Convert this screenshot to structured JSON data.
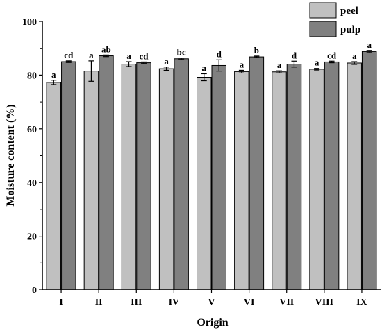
{
  "chart_data": {
    "type": "bar",
    "title": "",
    "xlabel": "Origin",
    "ylabel": "Moisture content (%)",
    "ylim": [
      0,
      100
    ],
    "yticks": [
      0,
      20,
      40,
      60,
      80,
      100
    ],
    "categories": [
      "I",
      "II",
      "III",
      "IV",
      "V",
      "VI",
      "VII",
      "VIII",
      "IX"
    ],
    "series": [
      {
        "name": "peel",
        "color": "#c0c0c0",
        "values": [
          77.3,
          81.5,
          84.1,
          82.4,
          79.2,
          81.3,
          81.2,
          82.2,
          84.5
        ],
        "errors": [
          0.8,
          3.8,
          0.9,
          0.6,
          1.3,
          0.5,
          0.4,
          0.3,
          0.5
        ],
        "letters": [
          "a",
          "a",
          "a",
          "a",
          "a",
          "a",
          "a",
          "a",
          "a"
        ]
      },
      {
        "name": "pulp",
        "color": "#808080",
        "values": [
          85.0,
          87.2,
          84.6,
          86.1,
          83.6,
          86.8,
          84.1,
          84.9,
          88.8
        ],
        "errors": [
          0.3,
          0.3,
          0.3,
          0.3,
          2.1,
          0.3,
          1.1,
          0.3,
          0.4
        ],
        "letters": [
          "cd",
          "ab",
          "cd",
          "bc",
          "d",
          "b",
          "d",
          "cd",
          "a"
        ]
      }
    ],
    "legend": {
      "position": "top-right"
    },
    "grid": false
  }
}
